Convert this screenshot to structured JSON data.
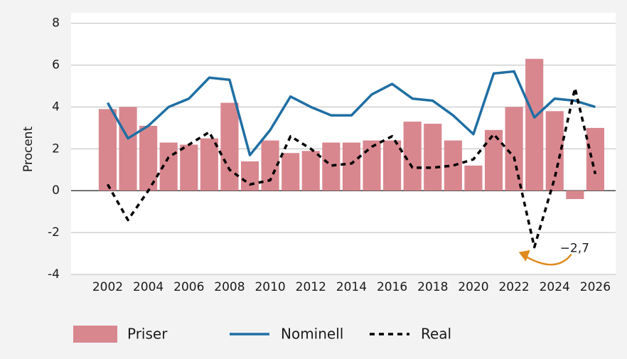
{
  "chart_data": {
    "type": "bar",
    "y_label": "Procent",
    "x": [
      2002,
      2003,
      2004,
      2005,
      2006,
      2007,
      2008,
      2009,
      2010,
      2011,
      2012,
      2013,
      2014,
      2015,
      2016,
      2017,
      2018,
      2019,
      2020,
      2021,
      2022,
      2023,
      2024,
      2025,
      2026
    ],
    "xlim": [
      2000.2,
      2027
    ],
    "xticks": [
      2002,
      2004,
      2006,
      2008,
      2010,
      2012,
      2014,
      2016,
      2018,
      2020,
      2022,
      2024,
      2026
    ],
    "ylim": [
      -4,
      8.5
    ],
    "yticks": [
      -4,
      -2,
      0,
      2,
      4,
      6,
      8
    ],
    "grid": true,
    "legend": "bottom",
    "series": [
      {
        "name": "Priser",
        "type": "bar",
        "color": "#d9878f",
        "values": [
          3.9,
          4.0,
          3.1,
          2.3,
          2.2,
          2.5,
          4.2,
          1.4,
          2.4,
          1.8,
          1.9,
          2.3,
          2.3,
          2.4,
          2.4,
          3.3,
          3.2,
          2.4,
          1.2,
          2.9,
          4.0,
          6.3,
          3.8,
          -0.4,
          3.0
        ]
      },
      {
        "name": "Nominell",
        "type": "line",
        "color": "#1f6fa3",
        "values": [
          4.2,
          2.5,
          3.1,
          4.0,
          4.4,
          5.4,
          5.3,
          1.7,
          2.9,
          4.5,
          4.0,
          3.6,
          3.6,
          4.6,
          5.1,
          4.4,
          4.3,
          3.6,
          2.7,
          5.6,
          5.7,
          3.5,
          4.4,
          4.3,
          4.0
        ]
      },
      {
        "name": "Real",
        "type": "line",
        "style": "dashed",
        "color": "#000000",
        "values": [
          0.3,
          -1.4,
          0.0,
          1.6,
          2.2,
          2.8,
          1.0,
          0.3,
          0.5,
          2.6,
          2.0,
          1.2,
          1.3,
          2.1,
          2.6,
          1.1,
          1.1,
          1.2,
          1.5,
          2.7,
          1.6,
          -2.7,
          0.6,
          4.9,
          0.8
        ]
      }
    ],
    "annotations": [
      {
        "text": "−2,7",
        "series": 2,
        "index": 21,
        "color": "#e08a1e"
      }
    ]
  }
}
